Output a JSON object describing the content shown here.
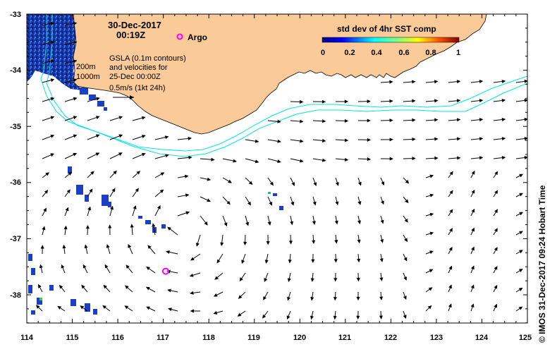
{
  "map": {
    "date": "30-Dec-2017",
    "time": "00:19Z",
    "argo_label": "Argo",
    "gsla_lines": [
      "GSLA (0.1m contours)",
      "and velocities for",
      "25-Dec 00:00Z",
      "0.5m/s (1kt 24h)"
    ],
    "isobath_labels": [
      "200m",
      "1000m"
    ],
    "colorbar": {
      "title": "std dev of 4hr SST comp",
      "ticks": [
        "0",
        "0.2",
        "0.4",
        "0.6",
        "0.8",
        "1"
      ]
    },
    "x_ticks": [
      "114",
      "115",
      "116",
      "117",
      "118",
      "119",
      "120",
      "121",
      "122",
      "123",
      "124",
      "125"
    ],
    "y_ticks": [
      "-33",
      "-34",
      "-35",
      "-36",
      "-37",
      "-38"
    ],
    "credit": "© IMOS 31-Dec-2017 09:24 Hobart Time",
    "colors": {
      "land": "#FACA98",
      "isobath": "#00E5E5",
      "argo": "#FF00FF",
      "sst_patch": "#1A3FC4"
    },
    "argo_floats": [
      {
        "lon": 117.05,
        "lat": -37.58
      }
    ]
  }
}
